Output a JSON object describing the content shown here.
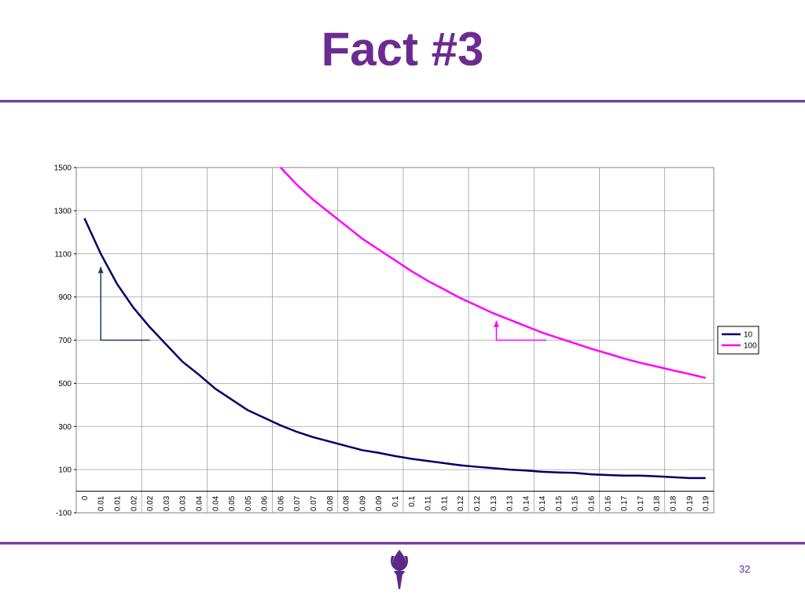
{
  "slide": {
    "title": "Fact #3",
    "page_number": "32"
  },
  "logo": {
    "icon": "torch-icon"
  },
  "chart_data": {
    "type": "line",
    "ylim": [
      -100,
      1500
    ],
    "yticks": [
      -100,
      100,
      300,
      500,
      700,
      900,
      1100,
      1300,
      1500
    ],
    "x_tick_labels": [
      "0",
      "0.01",
      "0.01",
      "0.02",
      "0.02",
      "0.03",
      "0.03",
      "0.04",
      "0.04",
      "0.05",
      "0.05",
      "0.06",
      "0.06",
      "0.07",
      "0.07",
      "0.08",
      "0.08",
      "0.09",
      "0.09",
      "0.1",
      "0.1",
      "0.11",
      "0.11",
      "0.12",
      "0.12",
      "0.13",
      "0.13",
      "0.14",
      "0.14",
      "0.15",
      "0.15",
      "0.16",
      "0.16",
      "0.17",
      "0.17",
      "0.18",
      "0.18",
      "0.19",
      "0.19"
    ],
    "grid": true,
    "legend": "right",
    "series": [
      {
        "name": "10",
        "color": "#000066",
        "values": [
          1265,
          1100,
          960,
          850,
          760,
          680,
          600,
          540,
          475,
          425,
          375,
          340,
          305,
          275,
          250,
          230,
          210,
          190,
          178,
          163,
          150,
          140,
          130,
          120,
          113,
          107,
          100,
          96,
          90,
          87,
          85,
          78,
          75,
          72,
          72,
          69,
          65,
          61,
          61
        ]
      },
      {
        "name": "100",
        "color": "#ff00ff",
        "values": [
          null,
          null,
          null,
          null,
          null,
          null,
          null,
          null,
          null,
          null,
          null,
          null,
          1500,
          1420,
          1350,
          1290,
          1230,
          1170,
          1120,
          1070,
          1020,
          975,
          935,
          895,
          860,
          825,
          795,
          765,
          735,
          710,
          685,
          660,
          638,
          615,
          595,
          578,
          560,
          543,
          525
        ]
      }
    ],
    "annotations": [
      {
        "series": "10",
        "from_x_index": 4.5,
        "to_x_index": 1.5,
        "base_y": 700,
        "to_y": 1040,
        "color": "#1c3a5e"
      },
      {
        "series": "100",
        "from_x_index": 28.75,
        "to_x_index": 25.7,
        "base_y": 700,
        "to_y": 790,
        "color": "#ff00ff"
      }
    ]
  }
}
